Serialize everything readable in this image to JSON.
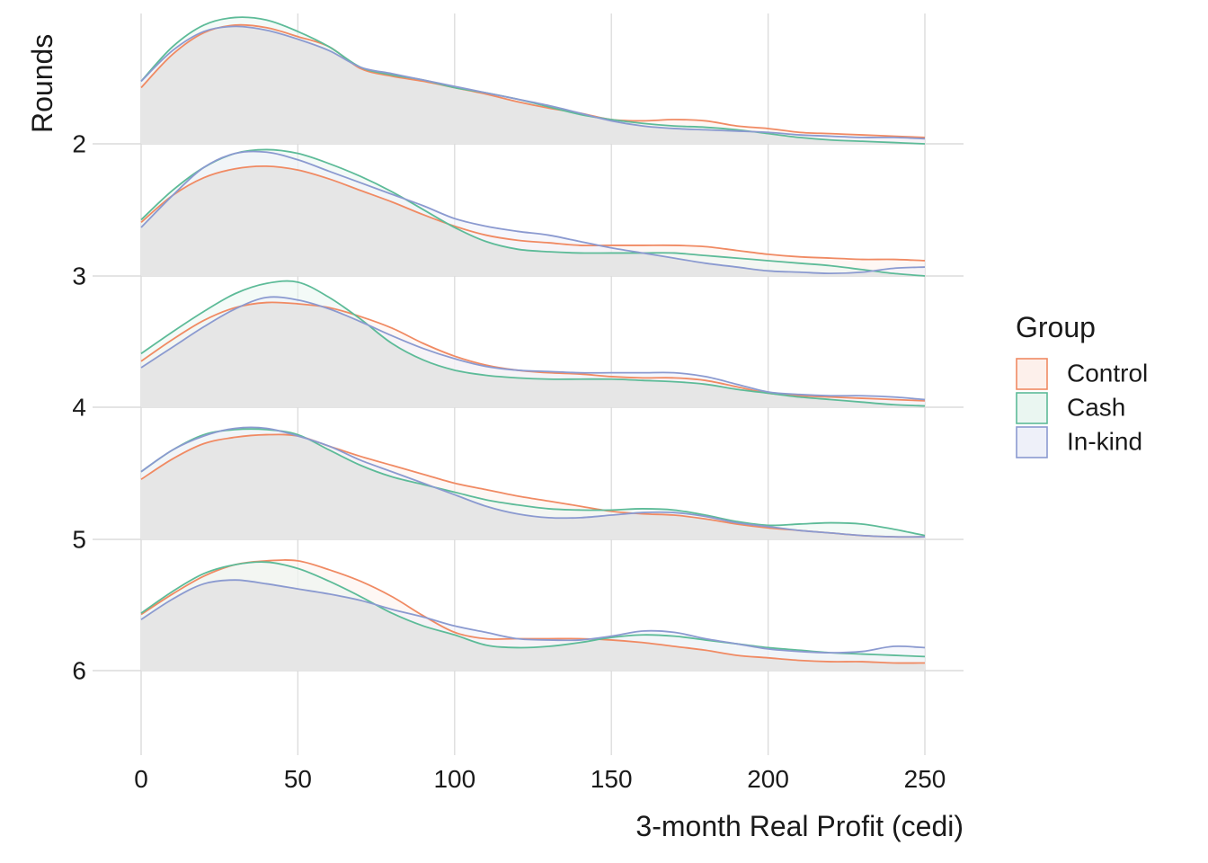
{
  "chart_data": {
    "type": "ridgeline-density",
    "xlabel": "3-month Real Profit (cedi)",
    "ylabel": "Rounds",
    "xlim": [
      0,
      250
    ],
    "xticks": [
      0,
      50,
      100,
      150,
      200,
      250
    ],
    "rounds": [
      "2",
      "3",
      "4",
      "5",
      "6"
    ],
    "legend": {
      "title": "Group",
      "position": "right",
      "entries": [
        {
          "name": "Control",
          "color": "#F08A63",
          "fill": "#FDF0EB"
        },
        {
          "name": "Cash",
          "color": "#5DBB98",
          "fill": "#EAF6F1"
        },
        {
          "name": "In-kind",
          "color": "#8B9AD0",
          "fill": "#EEF0F9"
        }
      ]
    },
    "x": [
      0,
      10,
      20,
      30,
      40,
      50,
      60,
      70,
      80,
      90,
      100,
      110,
      120,
      130,
      140,
      150,
      160,
      170,
      180,
      190,
      200,
      210,
      220,
      230,
      240,
      250
    ],
    "ridges": [
      {
        "round": "2",
        "series": [
          {
            "name": "Control",
            "values": [
              0.44,
              0.7,
              0.87,
              0.93,
              0.91,
              0.84,
              0.76,
              0.59,
              0.53,
              0.49,
              0.44,
              0.39,
              0.33,
              0.28,
              0.24,
              0.19,
              0.18,
              0.19,
              0.18,
              0.14,
              0.12,
              0.09,
              0.08,
              0.07,
              0.06,
              0.05
            ]
          },
          {
            "name": "Cash",
            "values": [
              0.49,
              0.76,
              0.93,
              0.99,
              0.97,
              0.88,
              0.76,
              0.6,
              0.54,
              0.5,
              0.44,
              0.4,
              0.35,
              0.29,
              0.23,
              0.19,
              0.16,
              0.14,
              0.13,
              0.11,
              0.08,
              0.05,
              0.03,
              0.02,
              0.01,
              0.0
            ]
          },
          {
            "name": "In-kind",
            "values": [
              0.49,
              0.73,
              0.88,
              0.92,
              0.89,
              0.82,
              0.73,
              0.6,
              0.55,
              0.5,
              0.45,
              0.4,
              0.35,
              0.3,
              0.24,
              0.18,
              0.14,
              0.12,
              0.11,
              0.1,
              0.09,
              0.07,
              0.06,
              0.05,
              0.05,
              0.04
            ]
          }
        ]
      },
      {
        "round": "3",
        "series": [
          {
            "name": "Control",
            "values": [
              0.42,
              0.63,
              0.77,
              0.84,
              0.86,
              0.83,
              0.76,
              0.67,
              0.58,
              0.48,
              0.39,
              0.32,
              0.28,
              0.26,
              0.24,
              0.24,
              0.24,
              0.24,
              0.23,
              0.2,
              0.17,
              0.15,
              0.14,
              0.13,
              0.13,
              0.12
            ]
          },
          {
            "name": "Cash",
            "values": [
              0.44,
              0.67,
              0.85,
              0.96,
              0.99,
              0.96,
              0.88,
              0.78,
              0.66,
              0.52,
              0.38,
              0.27,
              0.21,
              0.19,
              0.18,
              0.18,
              0.18,
              0.18,
              0.16,
              0.14,
              0.12,
              0.1,
              0.08,
              0.05,
              0.02,
              0.0
            ]
          },
          {
            "name": "In-kind",
            "values": [
              0.38,
              0.63,
              0.85,
              0.96,
              0.97,
              0.91,
              0.82,
              0.73,
              0.64,
              0.55,
              0.45,
              0.39,
              0.35,
              0.32,
              0.27,
              0.22,
              0.18,
              0.14,
              0.1,
              0.07,
              0.04,
              0.03,
              0.02,
              0.03,
              0.06,
              0.07
            ]
          }
        ]
      },
      {
        "round": "4",
        "series": [
          {
            "name": "Control",
            "values": [
              0.36,
              0.53,
              0.68,
              0.78,
              0.82,
              0.81,
              0.78,
              0.71,
              0.62,
              0.5,
              0.4,
              0.33,
              0.29,
              0.27,
              0.26,
              0.24,
              0.23,
              0.23,
              0.21,
              0.16,
              0.11,
              0.09,
              0.08,
              0.07,
              0.06,
              0.05
            ]
          },
          {
            "name": "Cash",
            "values": [
              0.42,
              0.59,
              0.75,
              0.89,
              0.97,
              0.98,
              0.86,
              0.69,
              0.5,
              0.37,
              0.29,
              0.25,
              0.23,
              0.22,
              0.22,
              0.22,
              0.21,
              0.2,
              0.18,
              0.14,
              0.11,
              0.08,
              0.06,
              0.04,
              0.02,
              0.01
            ]
          },
          {
            "name": "In-kind",
            "values": [
              0.31,
              0.47,
              0.63,
              0.77,
              0.86,
              0.84,
              0.77,
              0.67,
              0.56,
              0.46,
              0.38,
              0.32,
              0.29,
              0.28,
              0.27,
              0.27,
              0.27,
              0.27,
              0.24,
              0.18,
              0.12,
              0.1,
              0.09,
              0.09,
              0.08,
              0.06
            ]
          }
        ]
      },
      {
        "round": "5",
        "series": [
          {
            "name": "Control",
            "values": [
              0.47,
              0.63,
              0.75,
              0.8,
              0.82,
              0.81,
              0.73,
              0.65,
              0.58,
              0.51,
              0.44,
              0.39,
              0.34,
              0.3,
              0.26,
              0.22,
              0.2,
              0.19,
              0.16,
              0.12,
              0.09,
              0.07,
              0.05,
              0.03,
              0.02,
              0.02
            ]
          },
          {
            "name": "Cash",
            "values": [
              0.53,
              0.7,
              0.82,
              0.86,
              0.86,
              0.82,
              0.7,
              0.58,
              0.49,
              0.43,
              0.37,
              0.31,
              0.27,
              0.24,
              0.23,
              0.23,
              0.24,
              0.23,
              0.19,
              0.14,
              0.11,
              0.12,
              0.13,
              0.12,
              0.08,
              0.03
            ]
          },
          {
            "name": "In-kind",
            "values": [
              0.53,
              0.7,
              0.81,
              0.87,
              0.87,
              0.81,
              0.73,
              0.62,
              0.53,
              0.44,
              0.35,
              0.26,
              0.2,
              0.17,
              0.17,
              0.19,
              0.21,
              0.21,
              0.18,
              0.13,
              0.1,
              0.07,
              0.05,
              0.03,
              0.02,
              0.02
            ]
          }
        ]
      },
      {
        "round": "6",
        "series": [
          {
            "name": "Control",
            "values": [
              0.44,
              0.6,
              0.74,
              0.83,
              0.86,
              0.86,
              0.79,
              0.7,
              0.58,
              0.43,
              0.3,
              0.25,
              0.25,
              0.25,
              0.25,
              0.24,
              0.22,
              0.19,
              0.16,
              0.12,
              0.1,
              0.08,
              0.07,
              0.07,
              0.06,
              0.06
            ]
          },
          {
            "name": "Cash",
            "values": [
              0.45,
              0.62,
              0.76,
              0.83,
              0.85,
              0.8,
              0.7,
              0.58,
              0.45,
              0.35,
              0.28,
              0.2,
              0.18,
              0.19,
              0.22,
              0.26,
              0.28,
              0.27,
              0.24,
              0.21,
              0.18,
              0.16,
              0.14,
              0.13,
              0.12,
              0.11
            ]
          },
          {
            "name": "In-kind",
            "values": [
              0.4,
              0.56,
              0.68,
              0.71,
              0.68,
              0.64,
              0.6,
              0.55,
              0.48,
              0.42,
              0.35,
              0.3,
              0.25,
              0.24,
              0.24,
              0.27,
              0.31,
              0.3,
              0.25,
              0.21,
              0.17,
              0.15,
              0.14,
              0.15,
              0.19,
              0.18
            ]
          }
        ]
      }
    ]
  }
}
